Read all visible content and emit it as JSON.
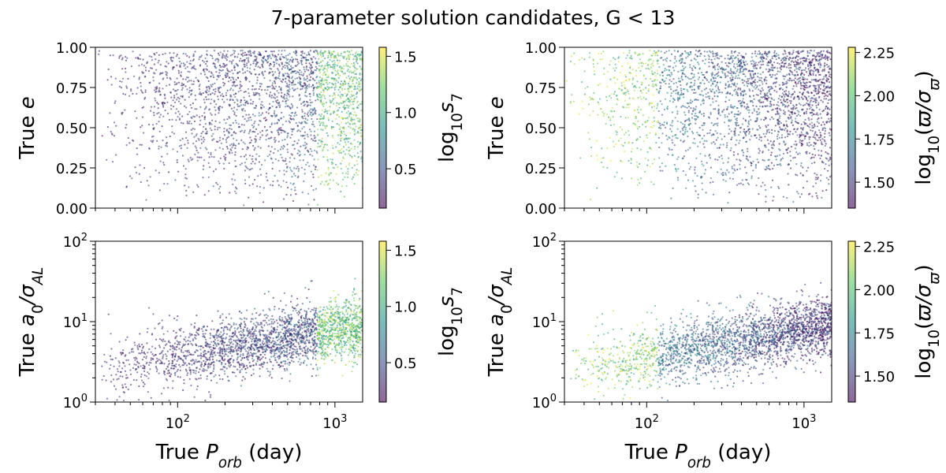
{
  "figure": {
    "title": "7-parameter solution candidates, G < 13"
  },
  "colormap": {
    "name": "viridis",
    "stops": [
      "#440154",
      "#3b528b",
      "#21918c",
      "#5ec962",
      "#fde725"
    ]
  },
  "chart_data": [
    {
      "id": "top-left",
      "type": "scatter",
      "xscale": "log",
      "xlim": [
        30,
        1500
      ],
      "yscale": "linear",
      "ylim": [
        0,
        1
      ],
      "yticks": [
        0.0,
        0.25,
        0.5,
        0.75,
        1.0
      ],
      "yticklabels": [
        "0.00",
        "0.25",
        "0.50",
        "0.75",
        "1.00"
      ],
      "xticks": [
        100,
        1000
      ],
      "xticklabels_shown": false,
      "xlabel": "",
      "ylabel": "True e",
      "colorbar": {
        "label": "log10 s7",
        "range": [
          0.15,
          1.58
        ],
        "ticks": [
          0.5,
          1.0,
          1.5
        ],
        "ticklabels": [
          "0.5",
          "1.0",
          "1.5"
        ]
      }
    },
    {
      "id": "top-right",
      "type": "scatter",
      "xscale": "log",
      "xlim": [
        30,
        1500
      ],
      "yscale": "linear",
      "ylim": [
        0,
        1
      ],
      "yticks": [
        0.0,
        0.25,
        0.5,
        0.75,
        1.0
      ],
      "yticklabels": [
        "0.00",
        "0.25",
        "0.50",
        "0.75",
        "1.00"
      ],
      "xticks": [
        100,
        1000
      ],
      "xticklabels_shown": false,
      "xlabel": "",
      "ylabel": "True e",
      "colorbar": {
        "label": "log10(ϖ/σϖ)",
        "range": [
          1.35,
          2.28
        ],
        "ticks": [
          1.5,
          1.75,
          2.0,
          2.25
        ],
        "ticklabels": [
          "1.50",
          "1.75",
          "2.00",
          "2.25"
        ]
      }
    },
    {
      "id": "bottom-left",
      "type": "scatter",
      "xscale": "log",
      "xlim": [
        30,
        1500
      ],
      "yscale": "log",
      "ylim": [
        1,
        100
      ],
      "yticks": [
        1,
        10,
        100
      ],
      "yticklabels": [
        "10^0",
        "10^1",
        "10^2"
      ],
      "xticks": [
        100,
        1000
      ],
      "xticklabels": [
        "10^2",
        "10^3"
      ],
      "xlabel": "True P_orb (day)",
      "ylabel": "True a0/σAL",
      "colorbar": {
        "label": "log10 s7",
        "range": [
          0.15,
          1.58
        ],
        "ticks": [
          0.5,
          1.0,
          1.5
        ],
        "ticklabels": [
          "0.5",
          "1.0",
          "1.5"
        ]
      }
    },
    {
      "id": "bottom-right",
      "type": "scatter",
      "xscale": "log",
      "xlim": [
        30,
        1500
      ],
      "yscale": "log",
      "ylim": [
        1,
        100
      ],
      "yticks": [
        1,
        10,
        100
      ],
      "yticklabels": [
        "10^0",
        "10^1",
        "10^2"
      ],
      "xticks": [
        100,
        1000
      ],
      "xticklabels": [
        "10^2",
        "10^3"
      ],
      "xlabel": "True P_orb (day)",
      "ylabel": "True a0/σAL",
      "colorbar": {
        "label": "log10(ϖ/σϖ)",
        "range": [
          1.35,
          2.28
        ],
        "ticks": [
          1.5,
          1.75,
          2.0,
          2.25
        ],
        "ticklabels": [
          "1.50",
          "1.75",
          "2.00",
          "2.25"
        ]
      }
    }
  ]
}
